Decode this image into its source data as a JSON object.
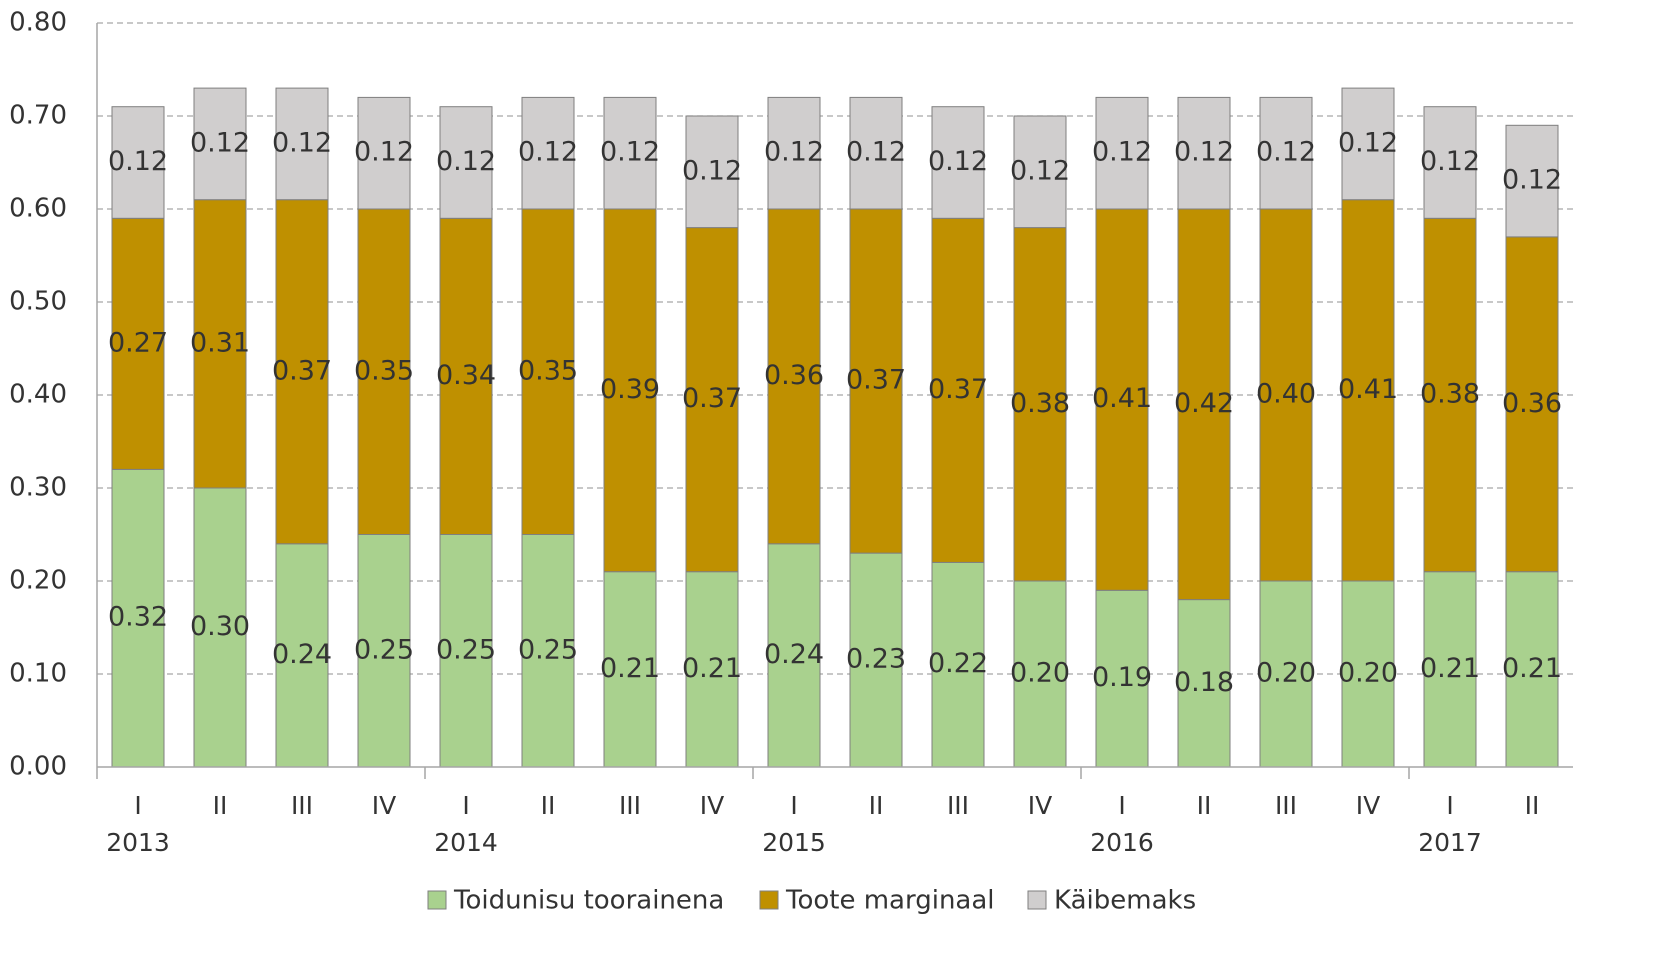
{
  "chart_data": {
    "type": "stacked_bar",
    "categories": [
      "I",
      "II",
      "III",
      "IV",
      "I",
      "II",
      "III",
      "IV",
      "I",
      "II",
      "III",
      "IV",
      "I",
      "II",
      "III",
      "IV",
      "I",
      "II"
    ],
    "years": [
      "2013",
      "2014",
      "2015",
      "2016",
      "2017"
    ],
    "series": [
      {
        "name": "Toidunisu toorainena",
        "color": "#a9d18e",
        "values": [
          0.32,
          0.3,
          0.24,
          0.25,
          0.25,
          0.25,
          0.21,
          0.21,
          0.24,
          0.23,
          0.22,
          0.2,
          0.19,
          0.18,
          0.2,
          0.2,
          0.21,
          0.21
        ],
        "value_labels": [
          "0.32",
          "0.30",
          "0.24",
          "0.25",
          "0.25",
          "0.25",
          "0.21",
          "0.21",
          "0.24",
          "0.23",
          "0.22",
          "0.20",
          "0.19",
          "0.18",
          "0.20",
          "0.20",
          "0.21",
          "0.21"
        ]
      },
      {
        "name": "Toote marginaal",
        "color": "#bf9000",
        "values": [
          0.27,
          0.31,
          0.37,
          0.35,
          0.34,
          0.35,
          0.39,
          0.37,
          0.36,
          0.37,
          0.37,
          0.38,
          0.41,
          0.42,
          0.4,
          0.41,
          0.38,
          0.36
        ],
        "value_labels": [
          "0.27",
          "0.31",
          "0.37",
          "0.35",
          "0.34",
          "0.35",
          "0.39",
          "0.37",
          "0.36",
          "0.37",
          "0.37",
          "0.38",
          "0.41",
          "0.42",
          "0.40",
          "0.41",
          "0.38",
          "0.36"
        ]
      },
      {
        "name": "Käibemaks",
        "color": "#d0cece",
        "values": [
          0.12,
          0.12,
          0.12,
          0.12,
          0.12,
          0.12,
          0.12,
          0.12,
          0.12,
          0.12,
          0.12,
          0.12,
          0.12,
          0.12,
          0.12,
          0.12,
          0.12,
          0.12
        ],
        "value_labels": [
          "0.12",
          "0.12",
          "0.12",
          "0.12",
          "0.12",
          "0.12",
          "0.12",
          "0.12",
          "0.12",
          "0.12",
          "0.12",
          "0.12",
          "0.12",
          "0.12",
          "0.12",
          "0.12",
          "0.12",
          "0.12"
        ]
      }
    ],
    "ylim": [
      0,
      0.8
    ],
    "yticks": [
      {
        "value": 0,
        "label": "0.00"
      },
      {
        "value": 0.1,
        "label": "0.10"
      },
      {
        "value": 0.2,
        "label": "0.20"
      },
      {
        "value": 0.3,
        "label": "0.30"
      },
      {
        "value": 0.4,
        "label": "0.40"
      },
      {
        "value": 0.5,
        "label": "0.50"
      },
      {
        "value": 0.6,
        "label": "0.60"
      },
      {
        "value": 0.7,
        "label": "0.70"
      },
      {
        "value": 0.8,
        "label": "0.80"
      }
    ],
    "grid": true,
    "legend": "bottom"
  }
}
